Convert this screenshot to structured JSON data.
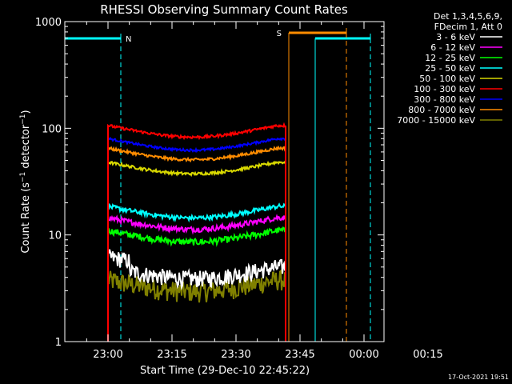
{
  "chart_data": {
    "type": "line",
    "title": "RHESSI Observing Summary Count Rates",
    "xlabel": "Start Time (29-Dec-10 22:45:22)",
    "ylabel": "Count Rate (s⁻¹ detector⁻¹)",
    "ylabel_main": "Count Rate (s",
    "ylabel_mid": " detector",
    "ylabel_end": ")",
    "ylabel_sup": "−1",
    "xaxis": {
      "start_time": "22:45:22",
      "tick_labels": [
        "23:00",
        "23:15",
        "23:30",
        "23:45",
        "00:00",
        "00:15"
      ]
    },
    "yaxis": {
      "scale": "log",
      "ylim": [
        1,
        1000
      ],
      "tick_labels": [
        "1",
        "10",
        "100",
        "1000"
      ]
    },
    "legend_placement": "right",
    "legend_header": [
      "Det 1,3,4,5,6,9,",
      "FDecim 1, Att 0"
    ],
    "series": [
      {
        "name": "3 - 6 keV",
        "color": "#ffffff",
        "level": 5.0
      },
      {
        "name": "6 - 12 keV",
        "color": "#ff00ff",
        "level": 14.5
      },
      {
        "name": "12 - 25 keV",
        "color": "#00ff00",
        "level": 11.0
      },
      {
        "name": "25 - 50 keV",
        "color": "#00ffff",
        "level": 18.5
      },
      {
        "name": "50 - 100 keV",
        "color": "#d8d800",
        "level": 48.0
      },
      {
        "name": "100 - 300 keV",
        "color": "#ff0000",
        "level": 106.0
      },
      {
        "name": "300 - 800 keV",
        "color": "#0000ff",
        "level": 80.0
      },
      {
        "name": "800 - 7000 keV",
        "color": "#ff8c00",
        "level": 65.0
      },
      {
        "name": "7000 - 15000 keV",
        "color": "#808000",
        "level": 3.8
      }
    ],
    "flags": [
      {
        "label": "N",
        "color": "#00ffff"
      },
      {
        "label": "S",
        "color": "#ff8c00"
      }
    ],
    "timestamp": "17-Oct-2021 19:51"
  }
}
